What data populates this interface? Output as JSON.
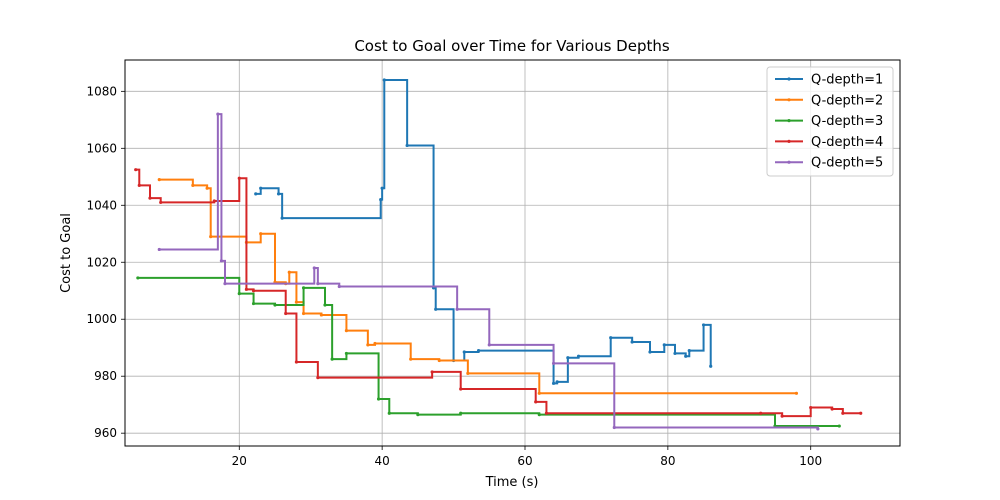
{
  "chart_data": {
    "type": "line",
    "title": "Cost to Goal over Time for Various Depths",
    "xlabel": "Time (s)",
    "ylabel": "Cost to Goal",
    "xlim": [
      4,
      112.5
    ],
    "ylim": [
      955.5,
      1091
    ],
    "xticks": [
      20,
      40,
      60,
      80,
      100
    ],
    "yticks": [
      960,
      980,
      1000,
      1020,
      1040,
      1060,
      1080
    ],
    "grid": true,
    "legend_position": "top-right",
    "step": true,
    "series": [
      {
        "name": "Q-depth=1",
        "color": "#1f77b4",
        "x": [
          22.3,
          23.0,
          25.5,
          26.0,
          39.8,
          40.0,
          40.3,
          43.5,
          47.2,
          47.5,
          50.0,
          51.5,
          53.5,
          64.0,
          64.5,
          66.0,
          67.5,
          72.0,
          75.0,
          77.5,
          79.5,
          81.0,
          82.5,
          83.0,
          85.0,
          86.0
        ],
        "y": [
          1044,
          1046,
          1044,
          1035.5,
          1042,
          1046,
          1084,
          1061,
          1011,
          1003.5,
          985.5,
          988.5,
          989,
          977.5,
          978,
          986.5,
          987,
          993.5,
          992,
          988.5,
          991,
          988,
          987,
          989,
          998,
          983.5
        ]
      },
      {
        "name": "Q-depth=2",
        "color": "#ff7f0e",
        "x": [
          8.8,
          13.5,
          15.5,
          16.0,
          21.0,
          23.0,
          25.0,
          26.5,
          27.0,
          28.0,
          29.0,
          31.5,
          35.0,
          38.0,
          39.0,
          44.0,
          48.0,
          52.0,
          62.0,
          98.0
        ],
        "y": [
          1049,
          1047,
          1046,
          1029,
          1027,
          1030,
          1013,
          1012.5,
          1016.5,
          1006,
          1002,
          1001.5,
          996,
          991,
          991.5,
          986,
          985.5,
          981,
          974,
          974
        ]
      },
      {
        "name": "Q-depth=3",
        "color": "#2ca02c",
        "x": [
          5.8,
          20.0,
          22.0,
          25.0,
          29.0,
          32.0,
          33.0,
          35.0,
          39.5,
          41.0,
          45.0,
          51.0,
          62.0,
          95.0,
          104.0
        ],
        "y": [
          1014.5,
          1009,
          1005.5,
          1005,
          1011,
          1005,
          986,
          988,
          972,
          967,
          966.5,
          967,
          966.5,
          962.5,
          962.5
        ]
      },
      {
        "name": "Q-depth=4",
        "color": "#d62728",
        "x": [
          5.5,
          6.0,
          7.5,
          9.0,
          16.5,
          20.0,
          21.0,
          22.0,
          26.5,
          28.0,
          31.0,
          47.0,
          51.0,
          61.5,
          63.0,
          93.0,
          96.0,
          100.0,
          103.0,
          104.5,
          107.0
        ],
        "y": [
          1052.5,
          1047,
          1042.5,
          1041,
          1041.5,
          1049.5,
          1010.5,
          1010,
          1002,
          985,
          979.5,
          981.5,
          975.5,
          971,
          967,
          967,
          966,
          969,
          968.5,
          967,
          967
        ]
      },
      {
        "name": "Q-depth=5",
        "color": "#9467bd",
        "x": [
          8.8,
          17.0,
          17.5,
          18.0,
          30.5,
          31.0,
          34.0,
          50.5,
          55.0,
          64.0,
          72.5,
          101.0
        ],
        "y": [
          1024.5,
          1072,
          1020.5,
          1012.5,
          1018,
          1012.5,
          1011.5,
          1003.5,
          991,
          984.5,
          962,
          961.5
        ]
      }
    ]
  }
}
